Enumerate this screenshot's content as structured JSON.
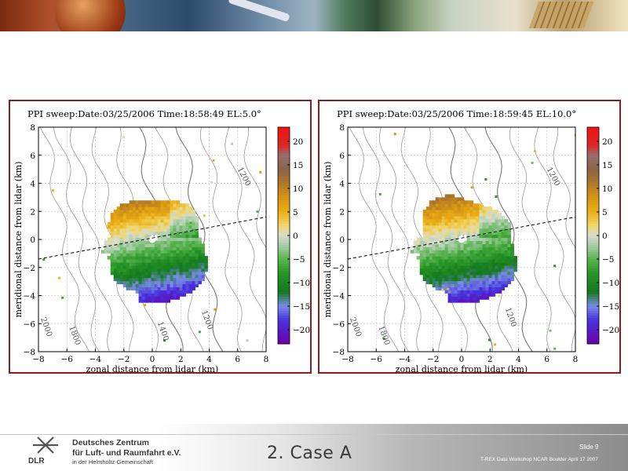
{
  "slide": {
    "title": "2. Case A",
    "slide_number": "Slide 9",
    "footer_note": "T-REX Data Workshop NCAR Boulder April 17 2007",
    "org_line1": "Deutsches Zentrum",
    "org_line2": "für Luft- und Raumfahrt e.V.",
    "org_line3": "in der Helmholtz-Gemeinschaft",
    "logo_text": "DLR"
  },
  "chart_data": [
    {
      "type": "heatmap",
      "title": "PPI sweep:Date:03/25/2006  Time:18:58:49  EL:5.0°",
      "xlabel": "zonal distance from lidar (km)",
      "ylabel": "meridional distance from lidar (km)",
      "xlim": [
        -8,
        8
      ],
      "ylim": [
        -8,
        8
      ],
      "x_ticks": [
        "−8",
        "−6",
        "−4",
        "−2",
        "0",
        "2",
        "4",
        "6",
        "8"
      ],
      "y_ticks": [
        "−8",
        "−6",
        "−4",
        "−2",
        "0",
        "2",
        "4",
        "6",
        "8"
      ],
      "grid": true,
      "colorbar": {
        "min": -23,
        "max": 23,
        "ticks": [
          "20",
          "15",
          "10",
          "5",
          "0",
          "−5",
          "−10",
          "−15",
          "−20"
        ]
      },
      "contour_labels": [
        {
          "text": "1200",
          "x": 6.3,
          "y": 4.4,
          "angle": 62
        },
        {
          "text": "1400",
          "x": 0.6,
          "y": -6.6,
          "angle": 70
        },
        {
          "text": "1200",
          "x": 3.7,
          "y": -5.8,
          "angle": 70
        },
        {
          "text": "1800",
          "x": -5.6,
          "y": -6.9,
          "angle": 70
        },
        {
          "text": "2000",
          "x": -7.6,
          "y": -6.3,
          "angle": 70
        }
      ],
      "beam_line": {
        "x": [
          -8,
          8
        ],
        "y": [
          -1.4,
          1.6
        ]
      },
      "region": {
        "max_radius": 3.3,
        "south_extent": 4.6
      }
    },
    {
      "type": "heatmap",
      "title": "PPI sweep:Date:03/25/2006  Time:18:59:45  EL:10.0°",
      "xlabel": "zonal distance from lidar (km)",
      "ylabel": "meridional distance from lidar (km)",
      "xlim": [
        -8,
        8
      ],
      "ylim": [
        -8,
        8
      ],
      "x_ticks": [
        "−8",
        "−6",
        "−4",
        "−2",
        "0",
        "2",
        "4",
        "6",
        "8"
      ],
      "y_ticks": [
        "−8",
        "−6",
        "−4",
        "−2",
        "0",
        "2",
        "4",
        "6",
        "8"
      ],
      "grid": true,
      "colorbar": {
        "min": -23,
        "max": 23,
        "ticks": [
          "20",
          "15",
          "10",
          "5",
          "0",
          "−5",
          "−10",
          "−15",
          "−20"
        ]
      },
      "contour_labels": [
        {
          "text": "1200",
          "x": 6.3,
          "y": 4.4,
          "angle": 62
        },
        {
          "text": "1200",
          "x": 3.3,
          "y": -5.6,
          "angle": 70
        },
        {
          "text": "1800",
          "x": -5.6,
          "y": -6.9,
          "angle": 70
        },
        {
          "text": "2000",
          "x": -7.6,
          "y": -6.3,
          "angle": 70
        }
      ],
      "beam_line": {
        "x": [
          -8,
          8
        ],
        "y": [
          -1.4,
          1.6
        ]
      },
      "region": {
        "max_radius": 3.3,
        "south_extent": 4.6
      }
    }
  ]
}
